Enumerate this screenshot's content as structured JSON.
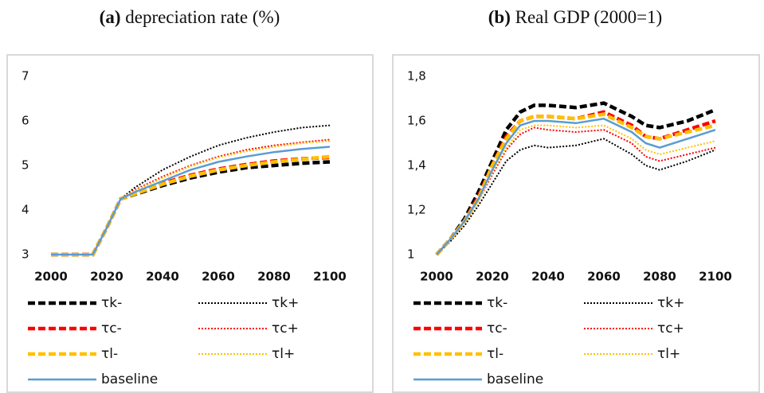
{
  "chart_data": [
    {
      "type": "line",
      "panel_label": "(a)",
      "title": "depreciation rate (%)",
      "x": [
        2000,
        2005,
        2010,
        2015,
        2020,
        2025,
        2030,
        2040,
        2050,
        2060,
        2070,
        2080,
        2090,
        2100
      ],
      "xlim": [
        2000,
        2100
      ],
      "xticks": [
        2000,
        2020,
        2040,
        2060,
        2080,
        2100
      ],
      "ylim": [
        3,
        7
      ],
      "yticks": [
        3,
        4,
        5,
        6,
        7
      ],
      "series": [
        {
          "name": "τk-",
          "color": "#000000",
          "style": "dashed",
          "values": [
            3,
            3,
            3,
            3,
            3.6,
            4.25,
            4.35,
            4.55,
            4.72,
            4.85,
            4.95,
            5.0,
            5.05,
            5.08
          ]
        },
        {
          "name": "τk+",
          "color": "#000000",
          "style": "dotted",
          "values": [
            3,
            3,
            3,
            3,
            3.6,
            4.25,
            4.5,
            4.9,
            5.2,
            5.45,
            5.62,
            5.75,
            5.85,
            5.9
          ]
        },
        {
          "name": "τc-",
          "color": "#ff0000",
          "style": "dashed",
          "values": [
            3,
            3,
            3,
            3,
            3.6,
            4.25,
            4.37,
            4.6,
            4.78,
            4.92,
            5.02,
            5.1,
            5.15,
            5.18
          ]
        },
        {
          "name": "τc+",
          "color": "#ff0000",
          "style": "dotted",
          "values": [
            3,
            3,
            3,
            3,
            3.6,
            4.25,
            4.45,
            4.75,
            5.0,
            5.2,
            5.35,
            5.45,
            5.52,
            5.58
          ]
        },
        {
          "name": "τl-",
          "color": "#ffc000",
          "style": "dashed",
          "values": [
            3,
            3,
            3,
            3,
            3.6,
            4.25,
            4.36,
            4.58,
            4.76,
            4.9,
            5.0,
            5.08,
            5.14,
            5.2
          ]
        },
        {
          "name": "τl+",
          "color": "#ffc000",
          "style": "dotted",
          "values": [
            3,
            3,
            3,
            3,
            3.6,
            4.25,
            4.43,
            4.72,
            4.98,
            5.18,
            5.32,
            5.42,
            5.5,
            5.55
          ]
        },
        {
          "name": "baseline",
          "color": "#5b9bd5",
          "style": "solid",
          "values": [
            3,
            3,
            3,
            3,
            3.6,
            4.25,
            4.4,
            4.65,
            4.9,
            5.08,
            5.2,
            5.3,
            5.37,
            5.42
          ]
        }
      ]
    },
    {
      "type": "line",
      "panel_label": "(b)",
      "title": "Real GDP (2000=1)",
      "x": [
        2000,
        2005,
        2010,
        2015,
        2020,
        2025,
        2030,
        2035,
        2040,
        2050,
        2060,
        2070,
        2075,
        2080,
        2090,
        2100
      ],
      "xlim": [
        2000,
        2100
      ],
      "xticks": [
        2000,
        2020,
        2040,
        2060,
        2080,
        2100
      ],
      "ylim": [
        1,
        1.8
      ],
      "yticks": [
        1,
        {
          "value": 1.2,
          "label": "1,2"
        },
        {
          "value": 1.4,
          "label": "1,4"
        },
        {
          "value": 1.6,
          "label": "1,6"
        },
        {
          "value": 1.8,
          "label": "1,8"
        }
      ],
      "series": [
        {
          "name": "τk-",
          "color": "#000000",
          "style": "dashed",
          "values": [
            1,
            1.07,
            1.16,
            1.28,
            1.42,
            1.56,
            1.64,
            1.67,
            1.67,
            1.66,
            1.68,
            1.62,
            1.58,
            1.57,
            1.6,
            1.65
          ]
        },
        {
          "name": "τk+",
          "color": "#000000",
          "style": "dotted",
          "values": [
            1,
            1.06,
            1.13,
            1.22,
            1.32,
            1.42,
            1.47,
            1.49,
            1.48,
            1.49,
            1.52,
            1.45,
            1.4,
            1.38,
            1.42,
            1.47
          ]
        },
        {
          "name": "τc-",
          "color": "#ff0000",
          "style": "dashed",
          "values": [
            1,
            1.07,
            1.15,
            1.26,
            1.4,
            1.53,
            1.6,
            1.62,
            1.62,
            1.61,
            1.64,
            1.58,
            1.53,
            1.52,
            1.56,
            1.6
          ]
        },
        {
          "name": "τc+",
          "color": "#ff0000",
          "style": "dotted",
          "values": [
            1,
            1.07,
            1.14,
            1.24,
            1.36,
            1.47,
            1.54,
            1.57,
            1.56,
            1.55,
            1.56,
            1.5,
            1.44,
            1.42,
            1.45,
            1.48
          ]
        },
        {
          "name": "τl-",
          "color": "#ffc000",
          "style": "dashed",
          "values": [
            1,
            1.07,
            1.15,
            1.25,
            1.4,
            1.52,
            1.6,
            1.62,
            1.62,
            1.61,
            1.63,
            1.57,
            1.53,
            1.52,
            1.55,
            1.58
          ]
        },
        {
          "name": "τl+",
          "color": "#ffc000",
          "style": "dotted",
          "values": [
            1,
            1.07,
            1.14,
            1.24,
            1.37,
            1.48,
            1.56,
            1.58,
            1.58,
            1.57,
            1.58,
            1.52,
            1.47,
            1.45,
            1.48,
            1.51
          ]
        },
        {
          "name": "baseline",
          "color": "#5b9bd5",
          "style": "solid",
          "values": [
            1,
            1.07,
            1.15,
            1.25,
            1.38,
            1.5,
            1.58,
            1.6,
            1.6,
            1.59,
            1.61,
            1.55,
            1.5,
            1.48,
            1.52,
            1.56
          ]
        }
      ]
    }
  ]
}
